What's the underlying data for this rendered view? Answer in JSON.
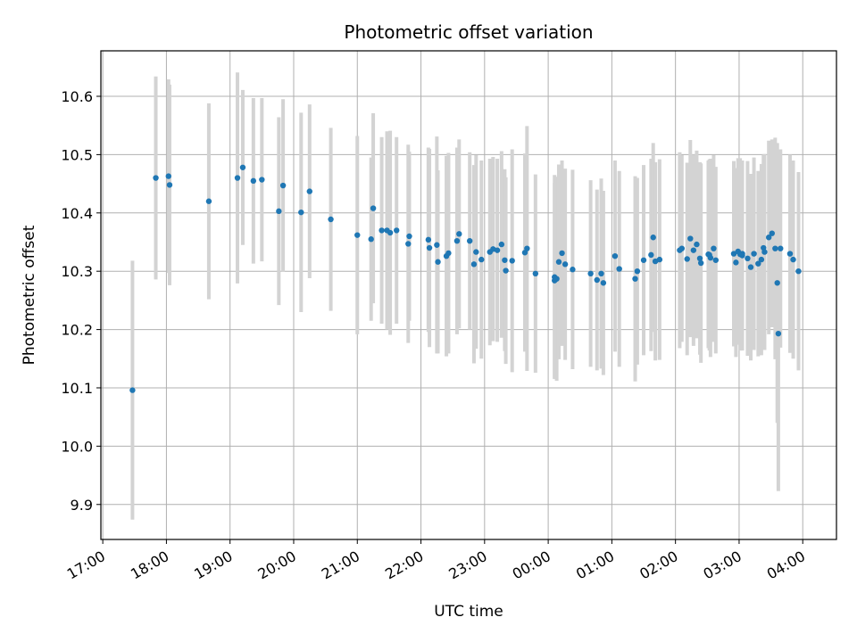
{
  "chart_data": {
    "type": "scatter",
    "title": "Photometric offset variation",
    "xlabel": "UTC time",
    "ylabel": "Photometric offset",
    "x_ticks": [
      "17:00",
      "18:00",
      "19:00",
      "20:00",
      "21:00",
      "22:00",
      "23:00",
      "00:00",
      "01:00",
      "02:00",
      "03:00",
      "04:00"
    ],
    "y_ticks": [
      "9.9",
      "10.0",
      "10.1",
      "10.2",
      "10.3",
      "10.4",
      "10.5",
      "10.6"
    ],
    "xlim": [
      "16:56",
      "22:44+6h"
    ],
    "ylim": [
      9.84,
      10.678
    ],
    "x_range_hours_since_17": [
      -0.03,
      11.53
    ],
    "grid": true,
    "colors": {
      "point": "#1f77b4",
      "errorbar": "#d3d3d3",
      "grid": "#b0b0b0"
    },
    "series": [
      {
        "x": [
          "17:28",
          "17:50",
          "18:02",
          "18:03",
          "18:40",
          "19:07",
          "19:12",
          "19:22",
          "19:30",
          "19:46",
          "19:50",
          "20:07",
          "20:15",
          "20:35",
          "21:00",
          "21:13",
          "21:15",
          "21:23",
          "21:28",
          "21:31",
          "21:37",
          "21:48",
          "21:49",
          "22:07",
          "22:08",
          "22:15",
          "22:16",
          "22:24",
          "22:26",
          "22:34",
          "22:36",
          "22:46",
          "22:50",
          "22:52",
          "22:57",
          "23:05",
          "23:08",
          "23:12",
          "23:16",
          "23:19",
          "23:20",
          "23:26",
          "23:38",
          "23:40",
          "23:48",
          "24:06",
          "24:06",
          "24:08",
          "24:10",
          "24:13",
          "24:16",
          "24:23",
          "24:40",
          "24:46",
          "24:50",
          "24:52",
          "25:03",
          "25:07",
          "25:22",
          "25:24",
          "25:30",
          "25:37",
          "25:39",
          "25:41",
          "25:45",
          "26:04",
          "26:06",
          "26:11",
          "26:14",
          "26:17",
          "26:20",
          "26:23",
          "26:24",
          "26:31",
          "26:32",
          "26:33",
          "26:36",
          "26:38",
          "26:55",
          "26:57",
          "26:59",
          "27:01",
          "27:03",
          "27:03",
          "27:08",
          "27:11",
          "27:14",
          "27:18",
          "27:21",
          "27:23",
          "27:24",
          "27:28",
          "27:31",
          "27:34",
          "27:36",
          "27:37",
          "27:39",
          "27:48",
          "27:51",
          "27:56"
        ],
        "y": [
          10.096,
          10.46,
          10.463,
          10.448,
          10.42,
          10.46,
          10.478,
          10.455,
          10.457,
          10.403,
          10.447,
          10.401,
          10.437,
          10.389,
          10.362,
          10.355,
          10.408,
          10.37,
          10.37,
          10.366,
          10.37,
          10.347,
          10.36,
          10.354,
          10.34,
          10.345,
          10.316,
          10.326,
          10.331,
          10.352,
          10.364,
          10.352,
          10.312,
          10.333,
          10.32,
          10.333,
          10.338,
          10.336,
          10.346,
          10.319,
          10.301,
          10.318,
          10.332,
          10.339,
          10.296,
          10.284,
          10.29,
          10.287,
          10.316,
          10.331,
          10.312,
          10.303,
          10.296,
          10.285,
          10.296,
          10.28,
          10.326,
          10.304,
          10.287,
          10.3,
          10.319,
          10.328,
          10.358,
          10.317,
          10.32,
          10.336,
          10.339,
          10.321,
          10.356,
          10.336,
          10.346,
          10.322,
          10.314,
          10.329,
          10.328,
          10.323,
          10.339,
          10.319,
          10.33,
          10.315,
          10.334,
          10.329,
          10.327,
          10.33,
          10.322,
          10.307,
          10.33,
          10.313,
          10.32,
          10.34,
          10.333,
          10.358,
          10.365,
          10.339,
          10.28,
          10.193,
          10.339,
          10.33,
          10.32,
          10.3
        ],
        "err": [
          0.222,
          0.174,
          0.166,
          0.172,
          0.168,
          0.181,
          0.133,
          0.142,
          0.14,
          0.161,
          0.148,
          0.171,
          0.149,
          0.157,
          0.17,
          0.14,
          0.163,
          0.16,
          0.17,
          0.175,
          0.16,
          0.17,
          0.145,
          0.158,
          0.17,
          0.186,
          0.157,
          0.172,
          0.172,
          0.16,
          0.162,
          0.152,
          0.17,
          0.166,
          0.17,
          0.16,
          0.158,
          0.157,
          0.16,
          0.156,
          0.16,
          0.191,
          0.17,
          0.21,
          0.17,
          0.167,
          0.175,
          0.175,
          0.167,
          0.159,
          0.164,
          0.171,
          0.16,
          0.155,
          0.163,
          0.158,
          0.164,
          0.168,
          0.176,
          0.16,
          0.163,
          0.165,
          0.162,
          0.17,
          0.172,
          0.168,
          0.16,
          0.165,
          0.169,
          0.164,
          0.161,
          0.165,
          0.171,
          0.161,
          0.164,
          0.17,
          0.16,
          0.16,
          0.159,
          0.162,
          0.16,
          0.165,
          0.163,
          0.16,
          0.167,
          0.16,
          0.165,
          0.159,
          0.164,
          0.16,
          0.168,
          0.166,
          0.161,
          0.19,
          0.24,
          0.27,
          0.17,
          0.17,
          0.17,
          0.17
        ]
      }
    ]
  }
}
